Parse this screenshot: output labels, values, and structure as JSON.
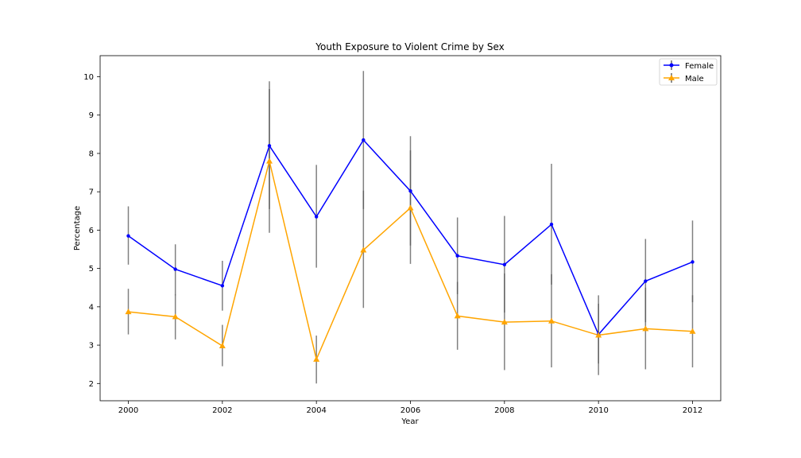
{
  "chart_data": {
    "type": "line",
    "title": "Youth Exposure to Violent Crime by Sex",
    "xlabel": "Year",
    "ylabel": "Percentage",
    "x": [
      2000,
      2001,
      2002,
      2003,
      2004,
      2005,
      2006,
      2007,
      2008,
      2009,
      2010,
      2011,
      2012
    ],
    "xticks": [
      "2000",
      "2002",
      "2004",
      "2006",
      "2008",
      "2010",
      "2012"
    ],
    "yticks": [
      "2",
      "3",
      "4",
      "5",
      "6",
      "7",
      "8",
      "9",
      "10"
    ],
    "xlim": [
      1999.4,
      2012.6
    ],
    "ylim": [
      1.55,
      10.55
    ],
    "grid": false,
    "legend_position": "top-right",
    "series": [
      {
        "name": "Female",
        "color": "#0000ff",
        "marker": "dot",
        "values": [
          5.85,
          4.98,
          4.55,
          8.2,
          6.35,
          8.35,
          7.02,
          5.33,
          5.1,
          6.15,
          3.28,
          4.67,
          5.17
        ],
        "err_low": [
          5.1,
          4.3,
          3.9,
          6.55,
          5.02,
          6.55,
          5.6,
          4.33,
          3.85,
          4.58,
          2.52,
          3.6,
          4.12
        ],
        "err_high": [
          6.62,
          5.63,
          5.2,
          9.88,
          7.7,
          10.15,
          8.45,
          6.33,
          6.37,
          7.73,
          4.08,
          5.77,
          6.25
        ]
      },
      {
        "name": "Male",
        "color": "#ffa500",
        "marker": "triangle",
        "values": [
          3.87,
          3.74,
          2.98,
          7.8,
          2.63,
          5.48,
          6.58,
          3.76,
          3.6,
          3.63,
          3.26,
          3.43,
          3.36
        ],
        "err_low": [
          3.28,
          3.15,
          2.45,
          5.93,
          2.0,
          3.97,
          5.12,
          2.88,
          2.35,
          2.42,
          2.22,
          2.37,
          2.42
        ],
        "err_high": [
          4.47,
          4.32,
          3.53,
          9.68,
          3.25,
          7.03,
          8.08,
          4.65,
          4.87,
          4.85,
          4.3,
          4.5,
          4.3
        ]
      }
    ]
  }
}
